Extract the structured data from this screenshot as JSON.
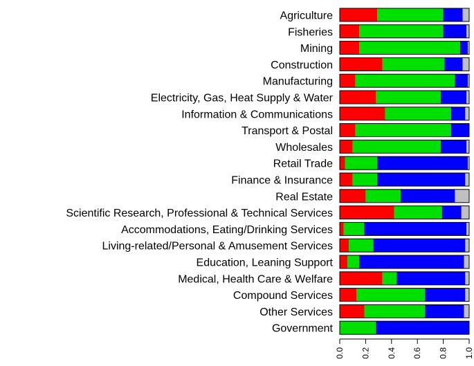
{
  "chart_data": {
    "type": "bar",
    "orientation": "horizontal",
    "stacked": true,
    "title": "",
    "xlabel": "",
    "ylabel": "",
    "xlim": [
      0,
      1
    ],
    "grid": false,
    "legend": "none",
    "x_ticks": [
      "0.0",
      "0.2",
      "0.4",
      "0.6",
      "0.8",
      "1.0"
    ],
    "tick_values": [
      0,
      0.2,
      0.4,
      0.6,
      0.8,
      1.0
    ],
    "categories": [
      "Agriculture",
      "Fisheries",
      "Mining",
      "Construction",
      "Manufacturing",
      "Electricity, Gas, Heat Supply & Water",
      "Information & Communications",
      "Transport & Postal",
      "Wholesales",
      "Retail Trade",
      "Finance & Insurance",
      "Real Estate",
      "Scientific Research, Professional & Technical Services",
      "Accommodations, Eating/Drinking Services",
      "Living-related/Personal & Amusement Services",
      "Education, Leaning Support",
      "Medical, Health Care & Welfare",
      "Compound Services",
      "Other Services",
      "Government"
    ],
    "series": [
      {
        "color": "#ff0000",
        "values": [
          0.29,
          0.15,
          0.15,
          0.33,
          0.12,
          0.28,
          0.35,
          0.12,
          0.1,
          0.04,
          0.1,
          0.2,
          0.42,
          0.03,
          0.07,
          0.06,
          0.33,
          0.13,
          0.19,
          0.0
        ]
      },
      {
        "color": "#00e000",
        "values": [
          0.51,
          0.65,
          0.78,
          0.48,
          0.77,
          0.5,
          0.51,
          0.74,
          0.68,
          0.25,
          0.19,
          0.27,
          0.37,
          0.16,
          0.19,
          0.09,
          0.11,
          0.53,
          0.47,
          0.28
        ]
      },
      {
        "color": "#0000ff",
        "values": [
          0.15,
          0.18,
          0.06,
          0.14,
          0.1,
          0.2,
          0.11,
          0.14,
          0.2,
          0.7,
          0.68,
          0.42,
          0.15,
          0.79,
          0.71,
          0.81,
          0.53,
          0.31,
          0.3,
          0.72
        ]
      },
      {
        "color": "#c0c0c0",
        "values": [
          0.05,
          0.02,
          0.01,
          0.05,
          0.01,
          0.02,
          0.03,
          0.0,
          0.02,
          0.01,
          0.03,
          0.11,
          0.06,
          0.02,
          0.03,
          0.04,
          0.03,
          0.03,
          0.04,
          0.0
        ]
      }
    ]
  }
}
